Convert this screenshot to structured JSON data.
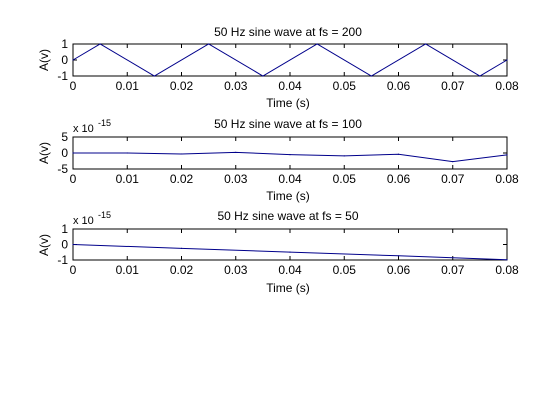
{
  "figure": {
    "background": "#ffffff",
    "line_color": "#00008b"
  },
  "chart_data": [
    {
      "type": "line",
      "title": "50 Hz sine wave at fs = 200",
      "xlabel": "Time (s)",
      "ylabel": "A(v)",
      "xlim": [
        0,
        0.08
      ],
      "ylim": [
        -1,
        1
      ],
      "xticks": [
        "0",
        "0.01",
        "0.02",
        "0.03",
        "0.04",
        "0.05",
        "0.06",
        "0.07",
        "0.08"
      ],
      "yticks": [
        "1",
        "0",
        "-1"
      ],
      "y_multiplier": "",
      "x": [
        0,
        0.005,
        0.015,
        0.025,
        0.035,
        0.045,
        0.055,
        0.065,
        0.075,
        0.08
      ],
      "y": [
        0,
        1,
        -1,
        1,
        -1,
        1,
        -1,
        1,
        -1,
        0
      ]
    },
    {
      "type": "line",
      "title": "50 Hz sine wave at fs = 100",
      "xlabel": "Time (s)",
      "ylabel": "A(v)",
      "xlim": [
        0,
        0.08
      ],
      "ylim": [
        -5,
        5
      ],
      "xticks": [
        "0",
        "0.01",
        "0.02",
        "0.03",
        "0.04",
        "0.05",
        "0.06",
        "0.07",
        "0.08"
      ],
      "yticks": [
        "5",
        "0",
        "-5"
      ],
      "y_multiplier": "x 10",
      "y_exponent": "-15",
      "x": [
        0,
        0.01,
        0.02,
        0.03,
        0.04,
        0.05,
        0.06,
        0.07,
        0.08
      ],
      "y": [
        0.0,
        0.0,
        -0.3,
        0.2,
        -0.5,
        -0.9,
        -0.4,
        -2.7,
        -0.6
      ]
    },
    {
      "type": "line",
      "title": "50 Hz sine wave at fs = 50",
      "xlabel": "Time (s)",
      "ylabel": "A(v)",
      "xlim": [
        0,
        0.08
      ],
      "ylim": [
        -1,
        1
      ],
      "xticks": [
        "0",
        "0.01",
        "0.02",
        "0.03",
        "0.04",
        "0.05",
        "0.06",
        "0.07",
        "0.08"
      ],
      "yticks": [
        "1",
        "0",
        "-1"
      ],
      "y_multiplier": "x 10",
      "y_exponent": "-15",
      "x": [
        0,
        0.02,
        0.04,
        0.06,
        0.08
      ],
      "y": [
        0.0,
        -0.25,
        -0.49,
        -0.73,
        -0.98
      ]
    }
  ]
}
